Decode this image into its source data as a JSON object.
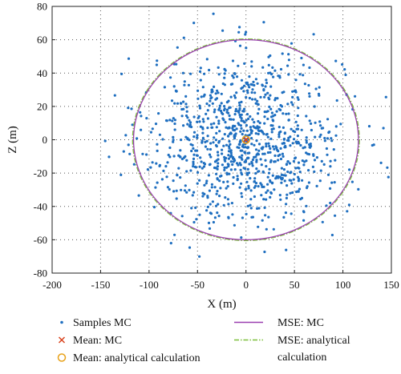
{
  "chart_data": {
    "type": "scatter",
    "xlabel": "X (m)",
    "ylabel": "Z (m)",
    "xlim": [
      -200,
      150
    ],
    "ylim": [
      -80,
      80
    ],
    "xticks": [
      -200,
      -150,
      -100,
      -50,
      0,
      50,
      100,
      150
    ],
    "yticks": [
      -80,
      -60,
      -40,
      -20,
      0,
      20,
      40,
      60,
      80
    ],
    "grid": true,
    "grid_style": "dotted",
    "legend_placement": "bottom",
    "colors": {
      "samples": "#1f6fc0",
      "mean_mc": "#d9431e",
      "mean_analytical": "#e8a21a",
      "mse_mc": "#9a3fb0",
      "mse_analytical": "#7bbf3a"
    },
    "series": [
      {
        "name": "Samples MC",
        "kind": "scatter",
        "n_points": 1000,
        "mean": [
          0,
          0
        ],
        "std": [
          50,
          25
        ]
      },
      {
        "name": "Mean: MC",
        "kind": "marker",
        "marker": "x",
        "point": [
          0,
          0
        ]
      },
      {
        "name": "Mean: analytical calculation",
        "kind": "marker",
        "marker": "circle",
        "point": [
          0,
          0
        ]
      },
      {
        "name": "MSE: MC",
        "kind": "ellipse",
        "center": [
          0,
          0
        ],
        "semi_axes": [
          116,
          60
        ]
      },
      {
        "name": "MSE: analytical calculation",
        "kind": "ellipse",
        "center": [
          0,
          0
        ],
        "semi_axes": [
          117,
          60.5
        ],
        "line_style": "dash-dot"
      }
    ],
    "legend": [
      {
        "label": "Samples MC",
        "symbol": "dot"
      },
      {
        "label": "Mean: MC",
        "symbol": "x"
      },
      {
        "label": "Mean: analytical calculation",
        "symbol": "circle"
      },
      {
        "label": "MSE: MC",
        "symbol": "line"
      },
      {
        "label": "MSE: analytical",
        "label2": "calculation",
        "symbol": "dashdot"
      }
    ]
  }
}
